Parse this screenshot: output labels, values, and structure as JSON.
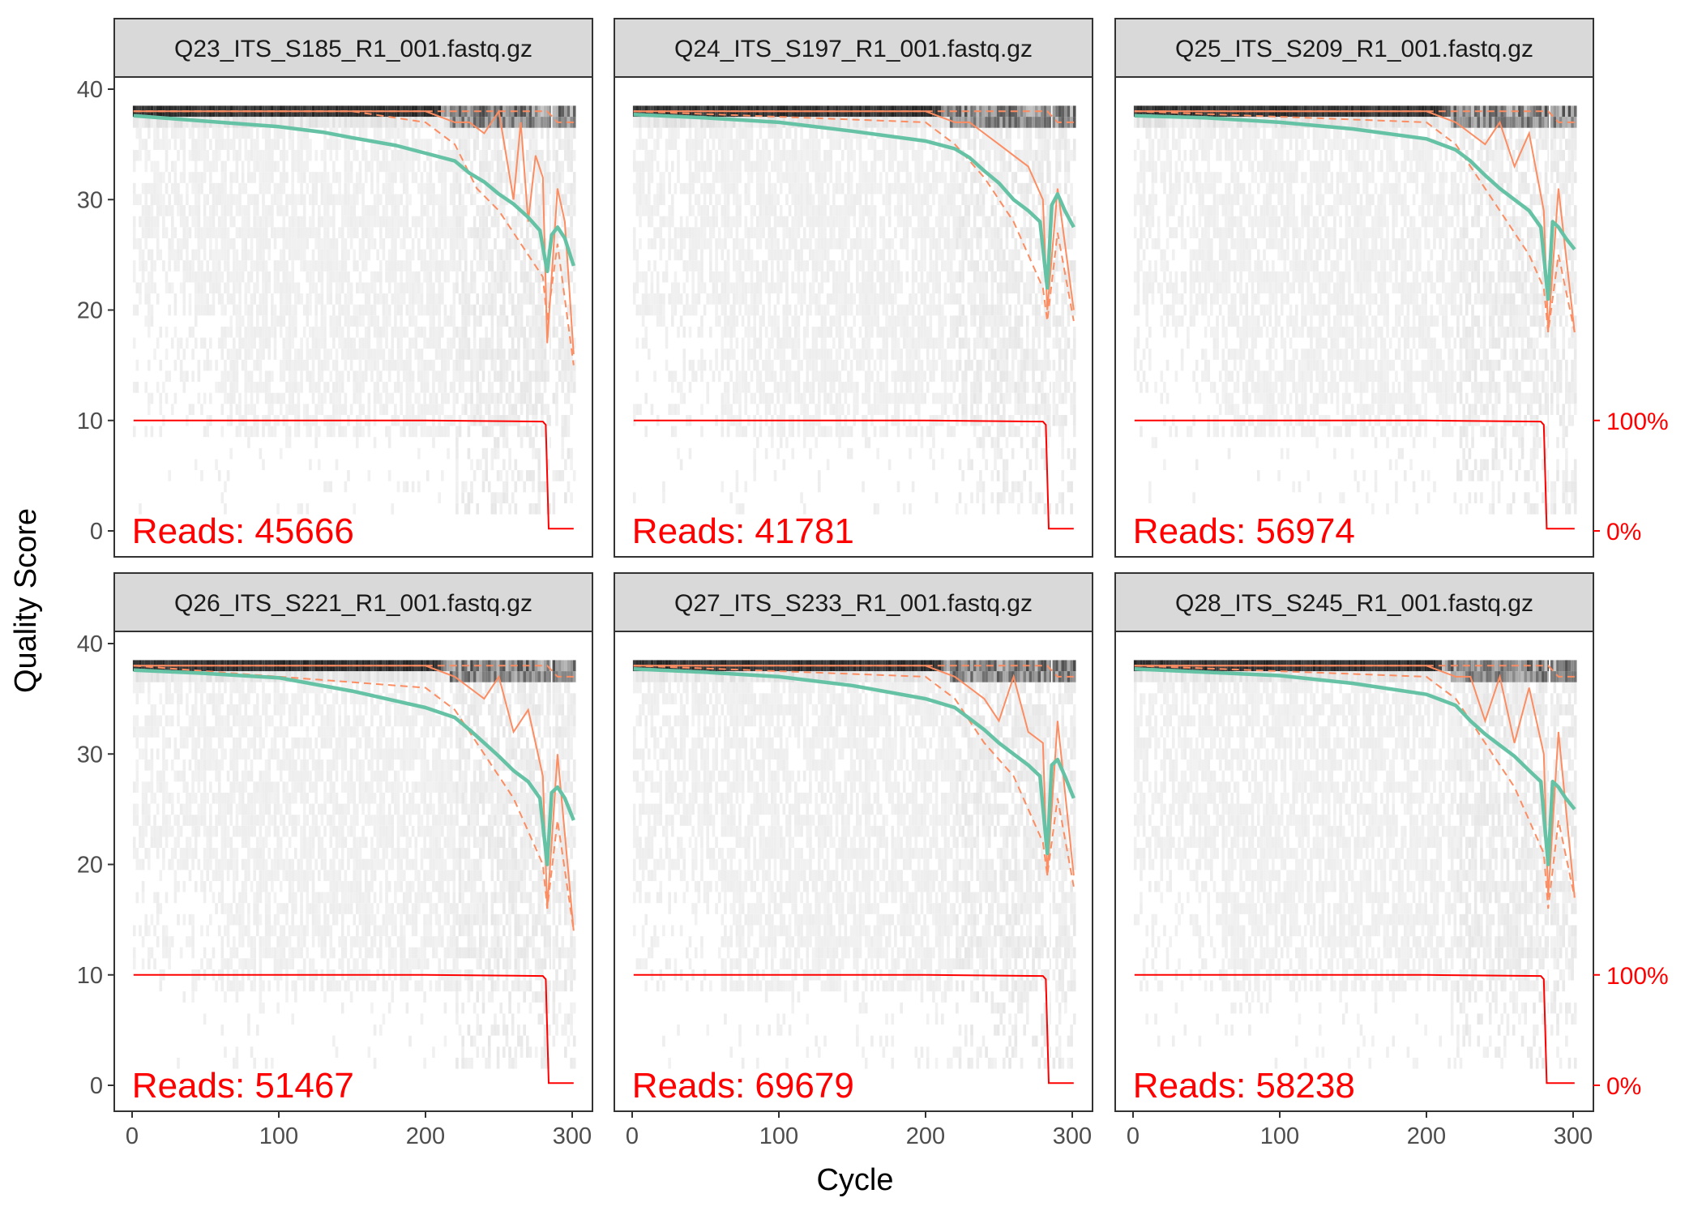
{
  "chart_data": {
    "type": "line",
    "xlabel": "Cycle",
    "ylabel": "Quality Score",
    "xlim": [
      0,
      300
    ],
    "ylim": [
      0,
      40
    ],
    "x_ticks": [
      0,
      100,
      200,
      300
    ],
    "y_ticks": [
      0,
      10,
      20,
      30,
      40
    ],
    "secondary_axis": {
      "labels": [
        "100%",
        "0%"
      ],
      "values_at_y": [
        10,
        0
      ]
    },
    "colors": {
      "mean": "#66c2a5",
      "quantile": "#fc8d62",
      "reads": "#ff0000",
      "strip": "#d9d9d9",
      "heat_dark": "#222222",
      "heat_light": "#f2f2f2"
    },
    "panels": [
      {
        "title": "Q23_ITS_S185_R1_001.fastq.gz",
        "reads_label": "Reads:  45666",
        "drop_cycle": 283,
        "median_x": [
          1,
          50,
          100,
          150,
          200,
          220,
          230,
          240,
          250,
          260,
          265,
          270,
          275,
          280,
          283,
          290,
          295,
          301
        ],
        "median_y": [
          38,
          38,
          38,
          38,
          38,
          37,
          37,
          36,
          38,
          30,
          37,
          28,
          34,
          32,
          17,
          31,
          28,
          16
        ],
        "mean_x": [
          1,
          20,
          50,
          80,
          100,
          130,
          150,
          180,
          200,
          220,
          230,
          240,
          250,
          260,
          270,
          278,
          283,
          286,
          290,
          295,
          301
        ],
        "mean_y": [
          37.6,
          37.4,
          37.1,
          36.8,
          36.6,
          36.1,
          35.6,
          34.9,
          34.2,
          33.5,
          32.4,
          31.6,
          30.5,
          29.6,
          28.4,
          27.2,
          23.5,
          26.8,
          27.5,
          26.5,
          24
        ],
        "q25_x": [
          1,
          150,
          200,
          220,
          235,
          250,
          260,
          270,
          280,
          283,
          290,
          301
        ],
        "q25_y": [
          38,
          38,
          37,
          35,
          31,
          29,
          27,
          25,
          23,
          19,
          26,
          15
        ],
        "q75_x": [
          1,
          220,
          283,
          290,
          301
        ],
        "q75_y": [
          38,
          38,
          38,
          37,
          37
        ],
        "reads_x": [
          1,
          200,
          280,
          282,
          284,
          301
        ],
        "reads_y": [
          10,
          10,
          9.9,
          9.6,
          0.2,
          0.2
        ]
      },
      {
        "title": "Q24_ITS_S197_R1_001.fastq.gz",
        "reads_label": "Reads:  41781",
        "drop_cycle": 283,
        "median_x": [
          1,
          50,
          100,
          150,
          200,
          220,
          230,
          240,
          250,
          260,
          270,
          280,
          283,
          290,
          301
        ],
        "median_y": [
          38,
          38,
          38,
          38,
          38,
          37,
          37,
          36,
          35,
          34,
          33,
          30,
          20,
          31,
          20
        ],
        "mean_x": [
          1,
          50,
          100,
          150,
          200,
          220,
          230,
          240,
          250,
          260,
          270,
          278,
          283,
          286,
          290,
          295,
          301
        ],
        "mean_y": [
          37.7,
          37.4,
          37.0,
          36.2,
          35.3,
          34.6,
          33.8,
          32.6,
          31.5,
          30.0,
          29.0,
          28.0,
          22.0,
          29.5,
          30.5,
          29.0,
          27.5
        ],
        "q25_x": [
          1,
          200,
          220,
          240,
          260,
          270,
          280,
          283,
          290,
          301
        ],
        "q25_y": [
          38,
          37,
          35,
          32,
          28,
          25,
          22,
          19,
          27,
          19
        ],
        "q75_x": [
          1,
          220,
          283,
          290,
          301
        ],
        "q75_y": [
          38,
          38,
          38,
          37,
          37
        ],
        "reads_x": [
          1,
          200,
          280,
          282,
          284,
          301
        ],
        "reads_y": [
          10,
          10,
          9.9,
          9.6,
          0.2,
          0.2
        ]
      },
      {
        "title": "Q25_ITS_S209_R1_001.fastq.gz",
        "reads_label": "Reads:  56974",
        "drop_cycle": 281,
        "median_x": [
          1,
          50,
          100,
          150,
          200,
          220,
          230,
          240,
          250,
          260,
          270,
          280,
          283,
          290,
          301
        ],
        "median_y": [
          38,
          38,
          38,
          38,
          38,
          37,
          36,
          35,
          37,
          33,
          36,
          29,
          18,
          31,
          18
        ],
        "mean_x": [
          1,
          50,
          100,
          150,
          200,
          220,
          230,
          240,
          250,
          260,
          270,
          278,
          283,
          286,
          290,
          295,
          301
        ],
        "mean_y": [
          37.6,
          37.4,
          37.0,
          36.4,
          35.5,
          34.5,
          33.5,
          32.2,
          31.0,
          30.0,
          29.0,
          27.5,
          21.0,
          28.0,
          27.5,
          26.5,
          25.5
        ],
        "q25_x": [
          1,
          200,
          220,
          240,
          260,
          270,
          280,
          283,
          290,
          301
        ],
        "q25_y": [
          38,
          37,
          35,
          31,
          27,
          25,
          22,
          18,
          25,
          18
        ],
        "q75_x": [
          1,
          220,
          283,
          290,
          301
        ],
        "q75_y": [
          38,
          38,
          38,
          37,
          37
        ],
        "reads_x": [
          1,
          200,
          278,
          280,
          282,
          301
        ],
        "reads_y": [
          10,
          10,
          9.9,
          9.6,
          0.2,
          0.2
        ]
      },
      {
        "title": "Q26_ITS_S221_R1_001.fastq.gz",
        "reads_label": "Reads:  51467",
        "drop_cycle": 283,
        "median_x": [
          1,
          50,
          100,
          150,
          200,
          220,
          230,
          240,
          250,
          260,
          270,
          280,
          283,
          290,
          301
        ],
        "median_y": [
          38,
          38,
          38,
          38,
          38,
          37,
          36,
          35,
          37,
          32,
          34,
          28,
          16,
          30,
          14
        ],
        "mean_x": [
          1,
          50,
          100,
          150,
          200,
          220,
          230,
          240,
          250,
          260,
          270,
          278,
          283,
          286,
          290,
          295,
          301
        ],
        "mean_y": [
          37.6,
          37.3,
          36.9,
          35.7,
          34.2,
          33.3,
          32.2,
          31.0,
          29.8,
          28.5,
          27.5,
          26.0,
          20.0,
          26.5,
          27.0,
          26.0,
          24.0
        ],
        "q25_x": [
          1,
          200,
          220,
          240,
          260,
          270,
          280,
          283,
          290,
          301
        ],
        "q25_y": [
          38,
          36,
          34,
          30,
          26,
          23,
          20,
          16,
          24,
          14
        ],
        "q75_x": [
          1,
          220,
          283,
          290,
          301
        ],
        "q75_y": [
          38,
          38,
          38,
          37,
          37
        ],
        "reads_x": [
          1,
          200,
          280,
          282,
          284,
          301
        ],
        "reads_y": [
          10,
          10,
          9.9,
          9.6,
          0.2,
          0.2
        ]
      },
      {
        "title": "Q27_ITS_S233_R1_001.fastq.gz",
        "reads_label": "Reads:  69679",
        "drop_cycle": 283,
        "median_x": [
          1,
          50,
          100,
          150,
          200,
          220,
          230,
          240,
          250,
          260,
          270,
          280,
          283,
          290,
          301
        ],
        "median_y": [
          38,
          38,
          38,
          38,
          38,
          37,
          36,
          35,
          33,
          37,
          32,
          31,
          19,
          33,
          19
        ],
        "mean_x": [
          1,
          50,
          100,
          150,
          200,
          220,
          230,
          240,
          250,
          260,
          270,
          278,
          283,
          286,
          290,
          295,
          301
        ],
        "mean_y": [
          37.7,
          37.4,
          37.0,
          36.2,
          35.0,
          34.2,
          33.2,
          32.2,
          31.0,
          30.0,
          29.0,
          28.0,
          21.0,
          29.0,
          29.5,
          28.0,
          26.0
        ],
        "q25_x": [
          1,
          200,
          220,
          240,
          260,
          270,
          280,
          283,
          290,
          301
        ],
        "q25_y": [
          38,
          37,
          35,
          31,
          28,
          25,
          22,
          19,
          26,
          18
        ],
        "q75_x": [
          1,
          220,
          283,
          290,
          301
        ],
        "q75_y": [
          38,
          38,
          38,
          37,
          37
        ],
        "reads_x": [
          1,
          200,
          280,
          282,
          284,
          301
        ],
        "reads_y": [
          10,
          10,
          9.9,
          9.6,
          0.2,
          0.2
        ]
      },
      {
        "title": "Q28_ITS_S245_R1_001.fastq.gz",
        "reads_label": "Reads:  58238",
        "drop_cycle": 281,
        "median_x": [
          1,
          50,
          100,
          150,
          200,
          220,
          230,
          240,
          250,
          260,
          270,
          280,
          283,
          290,
          301
        ],
        "median_y": [
          38,
          38,
          38,
          38,
          38,
          37,
          37,
          33,
          37,
          31,
          36,
          30,
          17,
          32,
          17
        ],
        "mean_x": [
          1,
          50,
          100,
          150,
          200,
          220,
          230,
          240,
          250,
          260,
          270,
          278,
          283,
          286,
          290,
          295,
          301
        ],
        "mean_y": [
          37.7,
          37.4,
          37.1,
          36.4,
          35.4,
          34.4,
          33.0,
          31.8,
          30.8,
          29.8,
          28.5,
          27.5,
          20.0,
          27.5,
          27.0,
          26.0,
          25.0
        ],
        "q25_x": [
          1,
          200,
          220,
          240,
          260,
          270,
          280,
          283,
          290,
          301
        ],
        "q25_y": [
          38,
          37,
          35,
          31,
          27,
          24,
          21,
          16,
          24,
          17
        ],
        "q75_x": [
          1,
          220,
          283,
          290,
          301
        ],
        "q75_y": [
          38,
          38,
          38,
          37,
          37
        ],
        "reads_x": [
          1,
          200,
          278,
          280,
          282,
          301
        ],
        "reads_y": [
          10,
          10,
          9.9,
          9.6,
          0.2,
          0.2
        ]
      }
    ]
  }
}
